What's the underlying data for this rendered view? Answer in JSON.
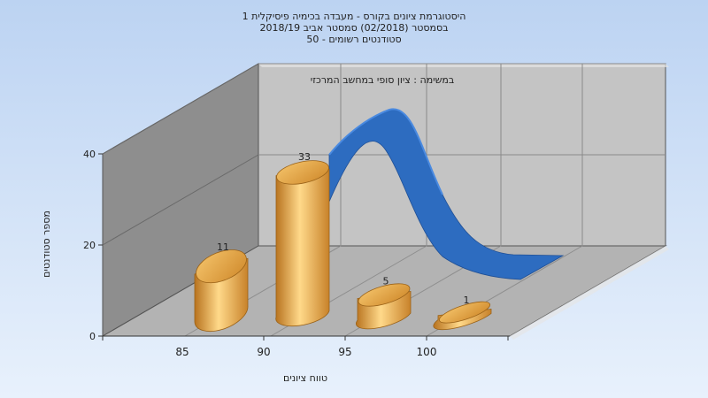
{
  "chart_data": {
    "type": "bar",
    "title_lines": [
      "היסטוגרמת ציונים בקורס - מעבדה בכימיה פיסיקלית 1",
      "בסמסטר  (02/2018)  סמסטר אביב 2018/19",
      "סטודנטים רשומים - 50"
    ],
    "subtitle": "במשימה : ציון סופי במחשב המרכזי",
    "xlabel": "טווח ציונים",
    "ylabel": "מספר סטודנטים",
    "categories": [
      "85",
      "90",
      "95",
      "100"
    ],
    "values": [
      11,
      33,
      5,
      1
    ],
    "data_labels": [
      "11",
      "33",
      "5",
      "1"
    ],
    "y_ticks": [
      "0",
      "20",
      "40"
    ],
    "ylim": [
      0,
      40
    ],
    "grid": true,
    "curve": "normal distribution",
    "colors": {
      "bar": "#e8a63c",
      "bar_light": "#ffd98a",
      "bar_dark": "#b87520",
      "curve": "#2d6cc0",
      "wall": "#c7c7c7",
      "side_wall": "#8a8a8a",
      "floor": "#b0b0b0",
      "background": "#cfe0f6"
    }
  }
}
